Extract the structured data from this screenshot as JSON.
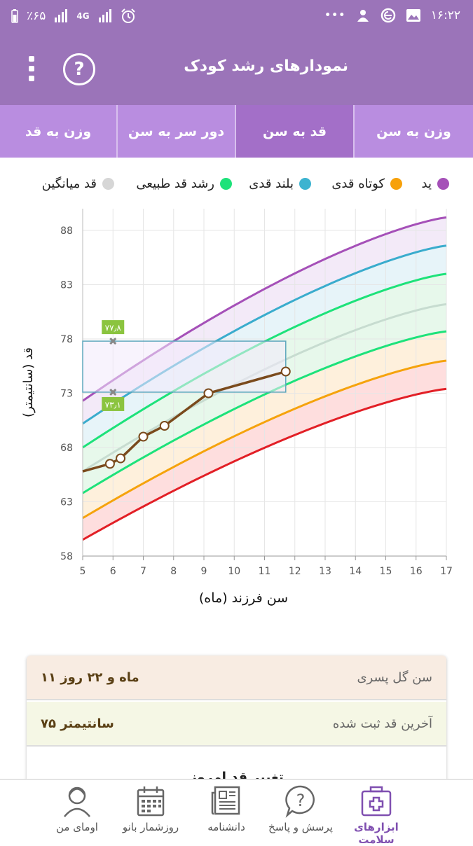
{
  "status": {
    "battery": "٪۶۵",
    "network": "4G",
    "time": "۱۶:۲۲",
    "more": "•••"
  },
  "app": {
    "title": "نمودارهای رشد کودک"
  },
  "tabs": [
    {
      "label": "وزن به قد",
      "active": false
    },
    {
      "label": "دور سر به سن",
      "active": false
    },
    {
      "label": "قد به سن",
      "active": true
    },
    {
      "label": "وزن به سن",
      "active": false
    }
  ],
  "legend": [
    {
      "label": "قد میانگین",
      "color": "#d6d6d6"
    },
    {
      "label": "رشد قد طبیعی",
      "color": "#1de27a"
    },
    {
      "label": "بلند قدی",
      "color": "#3cb3d0"
    },
    {
      "label": "کوتاه قدی",
      "color": "#f7a10a"
    },
    {
      "label": "ید",
      "color": "#a550b8"
    }
  ],
  "chart_data": {
    "type": "line",
    "ylabel": "قد (سانتیمتر)",
    "xlabel": "سن فرزند (ماه)",
    "xlim": [
      5,
      17
    ],
    "ylim": [
      58,
      90
    ],
    "xticks": [
      5,
      6,
      7,
      8,
      9,
      10,
      11,
      12,
      13,
      14,
      15,
      16,
      17
    ],
    "yticks": [
      58,
      63,
      68,
      73,
      78,
      83,
      88
    ],
    "grid": true,
    "percentile_curves": [
      {
        "color": "#e21f26",
        "start": 59.5,
        "end": 73.4
      },
      {
        "color": "#f5a30c",
        "start": 61.5,
        "end": 76.0
      },
      {
        "color": "#1de27a",
        "start": 63.8,
        "end": 78.7
      },
      {
        "color": "#c7dcd0",
        "start": 65.8,
        "end": 81.2
      },
      {
        "color": "#1de27a",
        "start": 68.0,
        "end": 84.0
      },
      {
        "color": "#3aaccd",
        "start": 70.2,
        "end": 86.6
      },
      {
        "color": "#a550b8",
        "start": 72.3,
        "end": 89.2
      }
    ],
    "bands": [
      {
        "color": "#fdd3d3"
      },
      {
        "color": "#fdebd0"
      },
      {
        "color": "#dff6e4"
      },
      {
        "color": "#dff6e4"
      },
      {
        "color": "#dff0f7"
      },
      {
        "color": "#efe3f5"
      }
    ],
    "series": [
      {
        "color": "#7a4a1c",
        "x": [
          5,
          5.9,
          6.25,
          7.0,
          7.7,
          9.15,
          11.7
        ],
        "y": [
          65.8,
          66.5,
          67.0,
          69.0,
          70.0,
          73.0,
          75.0
        ],
        "markers_from_index": 1
      }
    ],
    "annotations": [
      {
        "x": 6,
        "y": 77.8,
        "label": "۷۷٫۸"
      },
      {
        "x": 6,
        "y": 73.1,
        "label": "۷۳٫۱"
      }
    ],
    "highlight_box": {
      "x0": 5,
      "x1": 11.7,
      "y0": 73.1,
      "y1": 77.8
    }
  },
  "card": {
    "age_label": "سن گل پسری",
    "age_value": "۱۱ ماه و ۲۲ روز",
    "height_label": "آخرین قد ثبت شده",
    "height_value": "۷۵ سانتیمتر",
    "change_title": "تغییر قد امروز"
  },
  "bottom_nav": [
    {
      "label": "اومای من",
      "icon": "avatar-icon"
    },
    {
      "label": "روزشمار بانو",
      "icon": "calendar-icon"
    },
    {
      "label": "دانشنامه",
      "icon": "newspaper-icon"
    },
    {
      "label": "پرسش و پاسخ",
      "icon": "question-bubble-icon"
    },
    {
      "label": "ابزارهای سلامت",
      "icon": "medical-kit-icon",
      "active": true
    }
  ]
}
